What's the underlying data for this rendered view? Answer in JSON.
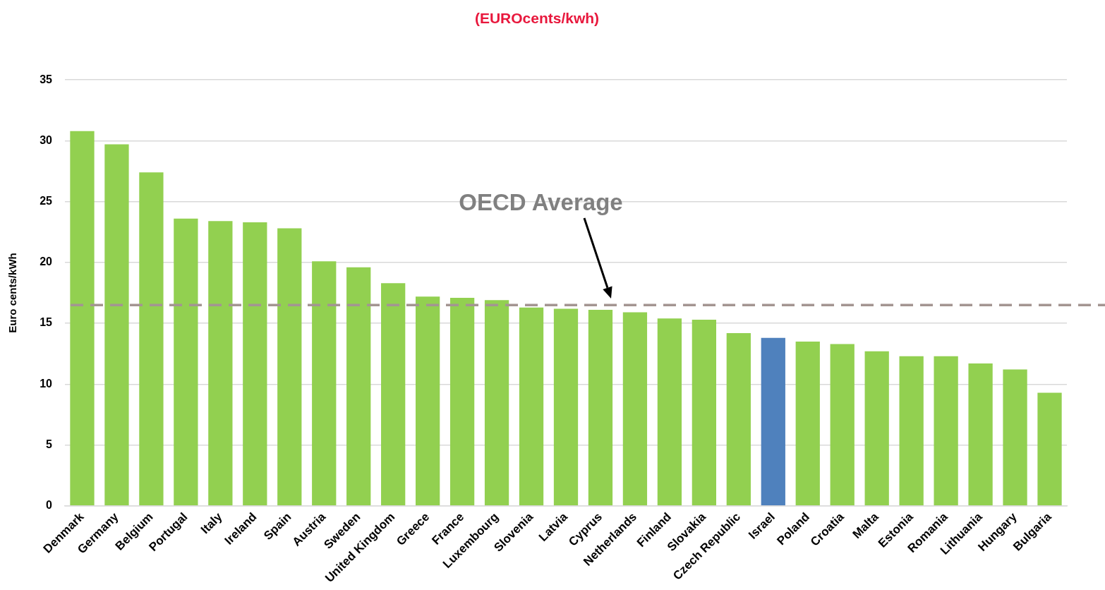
{
  "chart_data": {
    "type": "bar",
    "title": "(EUROcents/kwh)",
    "ylabel": "Euro cents/kWh",
    "categories": [
      "Denmark",
      "Germany",
      "Belgium",
      "Portugal",
      "Italy",
      "Ireland",
      "Spain",
      "Austria",
      "Sweden",
      "United Kingdom",
      "Greece",
      "France",
      "Luxembourg",
      "Slovenia",
      "Latvia",
      "Cyprus",
      "Netherlands",
      "Finland",
      "Slovakia",
      "Czech Republic",
      "Israel",
      "Poland",
      "Croatia",
      "Malta",
      "Estonia",
      "Romania",
      "Lithuania",
      "Hungary",
      "Bulgaria"
    ],
    "values": [
      30.8,
      29.7,
      27.4,
      23.6,
      23.4,
      23.3,
      22.8,
      20.1,
      19.6,
      18.3,
      17.2,
      17.1,
      16.9,
      16.3,
      16.2,
      16.1,
      15.9,
      15.4,
      15.3,
      14.2,
      13.8,
      13.5,
      13.3,
      12.7,
      12.3,
      12.3,
      11.7,
      11.2,
      9.3
    ],
    "colors": [
      "#92d050",
      "#92d050",
      "#92d050",
      "#92d050",
      "#92d050",
      "#92d050",
      "#92d050",
      "#92d050",
      "#92d050",
      "#92d050",
      "#92d050",
      "#92d050",
      "#92d050",
      "#92d050",
      "#92d050",
      "#92d050",
      "#92d050",
      "#92d050",
      "#92d050",
      "#92d050",
      "#4f81bd",
      "#92d050",
      "#92d050",
      "#92d050",
      "#92d050",
      "#92d050",
      "#92d050",
      "#92d050",
      "#92d050"
    ],
    "ylim": [
      0,
      35
    ],
    "yticks": [
      0,
      5,
      10,
      15,
      20,
      25,
      30,
      35
    ],
    "grid": "y",
    "ref_lines": [
      {
        "axis": "y",
        "value": 16.5,
        "label": "OECD Average",
        "color": "#a39591",
        "line_style": "dashed"
      }
    ]
  }
}
